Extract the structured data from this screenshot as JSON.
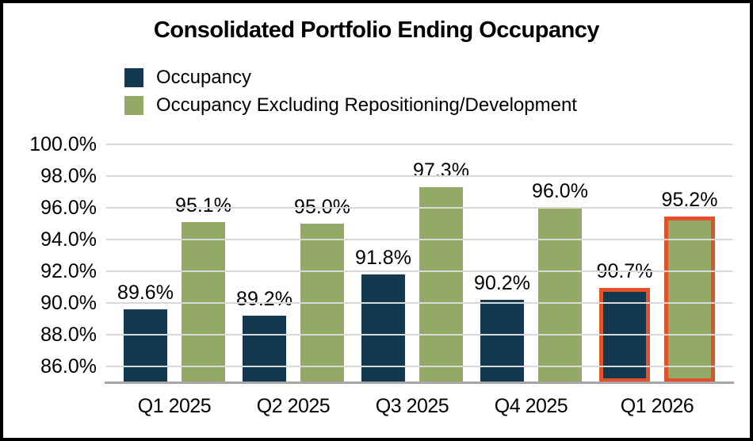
{
  "title": "Consolidated Portfolio Ending Occupancy",
  "legend": {
    "items": [
      {
        "label": "Occupancy",
        "color": "#13384F"
      },
      {
        "label": "Occupancy Excluding Repositioning/Development",
        "color": "#93AA66"
      }
    ]
  },
  "chart_data": {
    "type": "bar",
    "title": "Consolidated Portfolio Ending Occupancy",
    "categories": [
      "Q1 2025",
      "Q2 2025",
      "Q3 2025",
      "Q4 2025",
      "Q1 2026"
    ],
    "series": [
      {
        "name": "Occupancy",
        "color": "#13384F",
        "values": [
          89.6,
          89.2,
          91.8,
          90.2,
          90.7
        ],
        "labels": [
          "89.6%",
          "89.2%",
          "91.8%",
          "90.2%",
          "90.7%"
        ]
      },
      {
        "name": "Occupancy Excluding Repositioning/Development",
        "color": "#93AA66",
        "values": [
          95.1,
          95.0,
          97.3,
          96.0,
          95.2
        ],
        "labels": [
          "95.1%",
          "95.0%",
          "97.3%",
          "96.0%",
          "95.2%"
        ]
      }
    ],
    "highlighted_category": "Q1 2026",
    "highlight_color": "#E3512B",
    "ylim": [
      85,
      100
    ],
    "ytick_values": [
      86,
      88,
      90,
      92,
      94,
      96,
      98,
      100
    ],
    "ytick_labels": [
      "86.0%",
      "88.0%",
      "90.0%",
      "92.0%",
      "94.0%",
      "96.0%",
      "98.0%",
      "100.0%"
    ],
    "grid": true,
    "gridline_color": "#D9D9D9",
    "axis_line_color": "#A6A6A6",
    "legend_position": "top-left",
    "xlabel": "",
    "ylabel": ""
  }
}
